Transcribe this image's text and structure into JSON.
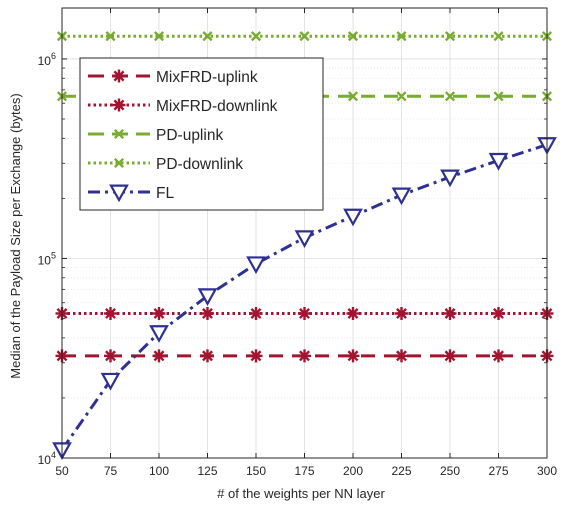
{
  "chart_data": {
    "type": "line",
    "title": "",
    "xlabel": "# of the weights per NN layer",
    "ylabel": "Median of the Payload Size per Exchange (bytes)",
    "x": [
      50,
      75,
      100,
      125,
      150,
      175,
      200,
      225,
      250,
      275,
      300
    ],
    "xlim": [
      50,
      300
    ],
    "ylim": [
      10000,
      1800000
    ],
    "yscale": "log",
    "grid": true,
    "legend_position": "top-left",
    "x_tick_labels": [
      "50",
      "75",
      "100",
      "125",
      "150",
      "175",
      "200",
      "225",
      "250",
      "275",
      "300"
    ],
    "y_ticks": [
      {
        "value": 10000,
        "base": "10",
        "exp": "4"
      },
      {
        "value": 100000,
        "base": "10",
        "exp": "5"
      },
      {
        "value": 1000000,
        "base": "10",
        "exp": "6"
      }
    ],
    "series": [
      {
        "name": "MixFRD-uplink",
        "color": "#a2142f",
        "marker": "asterisk",
        "line_style": "dashed",
        "values": [
          32500,
          32500,
          32500,
          32500,
          32500,
          32500,
          32500,
          32500,
          32500,
          32500,
          32500
        ]
      },
      {
        "name": "MixFRD-downlink",
        "color": "#a2142f",
        "marker": "asterisk",
        "line_style": "dotted",
        "values": [
          53000,
          53000,
          53000,
          53000,
          53000,
          53000,
          53000,
          53000,
          53000,
          53000,
          53000
        ]
      },
      {
        "name": "PD-uplink",
        "color": "#77ac30",
        "marker": "x",
        "line_style": "dashed",
        "values": [
          650000,
          650000,
          650000,
          650000,
          650000,
          650000,
          650000,
          650000,
          650000,
          650000,
          650000
        ]
      },
      {
        "name": "PD-downlink",
        "color": "#77ac30",
        "marker": "x",
        "line_style": "dotted",
        "values": [
          1300000,
          1300000,
          1300000,
          1300000,
          1300000,
          1300000,
          1300000,
          1300000,
          1300000,
          1300000,
          1300000
        ]
      },
      {
        "name": "FL",
        "color": "#2e3192",
        "marker": "triangle-down",
        "line_style": "dash-dot",
        "values": [
          11000,
          24500,
          42500,
          65000,
          94000,
          127000,
          163000,
          208000,
          256000,
          310000,
          372000
        ]
      }
    ]
  }
}
